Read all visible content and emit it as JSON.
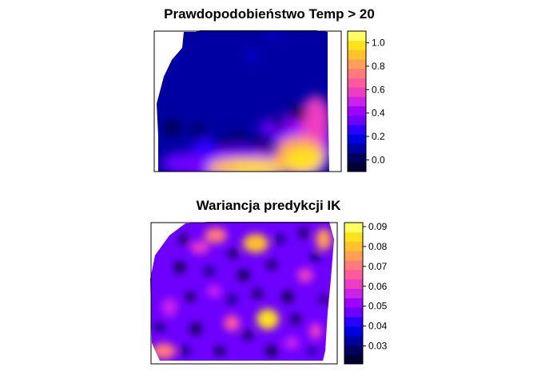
{
  "chart_data": [
    {
      "type": "heatmap",
      "title": "Prawdopodobieństwo Temp > 20",
      "legend": "right",
      "zlim": [
        -0.1,
        1.1
      ],
      "colorbar_ticks": [
        "1.0",
        "0.8",
        "0.6",
        "0.4",
        "0.2",
        "0.0"
      ],
      "colorbar_tick_values": [
        1.0,
        0.8,
        0.6,
        0.4,
        0.2,
        0.0
      ],
      "palette": [
        "#000033",
        "#00005F",
        "#0000A2",
        "#0000E5",
        "#2B00FF",
        "#6D00FF",
        "#A000FF",
        "#C923EA",
        "#EF3DC2",
        "#FF5A9E",
        "#FF7A7A",
        "#FF9E55",
        "#FFC12C",
        "#FFE21A",
        "#FFFF60"
      ],
      "field_description": "mostly near 0 (dark blue) with higher probability (yellow) along the southern and south-eastern border"
    },
    {
      "type": "heatmap",
      "title": "Wariancja predykcji IK",
      "legend": "right",
      "zlim": [
        0.021,
        0.092
      ],
      "colorbar_ticks": [
        "0.09",
        "0.08",
        "0.07",
        "0.06",
        "0.05",
        "0.04",
        "0.03"
      ],
      "colorbar_tick_values": [
        0.09,
        0.08,
        0.07,
        0.06,
        0.05,
        0.04,
        0.03
      ],
      "palette": [
        "#000033",
        "#00005F",
        "#0000A2",
        "#0000E5",
        "#2B00FF",
        "#6D00FF",
        "#A000FF",
        "#C923EA",
        "#EF3DC2",
        "#FF5A9E",
        "#FF7A7A",
        "#FF9E55",
        "#FFC12C",
        "#FFE21A",
        "#FFFF60"
      ],
      "field_description": "mottled variance: dark spots at observation locations, higher variance between them"
    }
  ]
}
